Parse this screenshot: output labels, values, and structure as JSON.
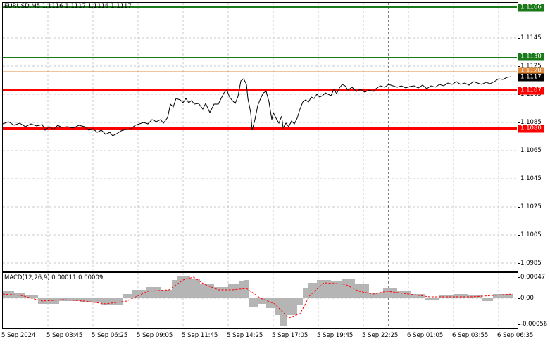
{
  "header": {
    "symbol_line": "EURUSD,M5  1.1116 1.1117 1.1116 1.1117"
  },
  "price_axis": {
    "labels": [
      "1.1145",
      "1.1125",
      "1.1105",
      "1.1085",
      "1.1065",
      "1.1045",
      "1.1025",
      "1.1005",
      "1.0985"
    ]
  },
  "levels": [
    {
      "name": "top-green",
      "price": "1.1166",
      "color": "#1a7a1a",
      "tag_bg": "#1a7a1a",
      "tag_fg": "#ffffff"
    },
    {
      "name": "green",
      "price": "1.1130",
      "color": "#1a7a1a",
      "tag_bg": "#1a7a1a",
      "tag_fg": "#ffffff"
    },
    {
      "name": "orange",
      "price": "1.1120",
      "color": "#e08a3c",
      "tag_bg": "#e08a3c",
      "tag_fg": "#ffffff"
    },
    {
      "name": "current",
      "price": "1.1117",
      "color": "#000000",
      "tag_bg": "#000000",
      "tag_fg": "#ffffff"
    },
    {
      "name": "red-upper",
      "price": "1.1107",
      "color": "#ff0000",
      "tag_bg": "#ff0000",
      "tag_fg": "#ffffff"
    },
    {
      "name": "red-lower",
      "price": "1.1080",
      "color": "#ff0000",
      "tag_bg": "#ff0000",
      "tag_fg": "#ffffff"
    }
  ],
  "macd": {
    "title": "MACD(12,26,9) 0.00011 0.00009",
    "labels": [
      "0.00047",
      "0.00",
      "-0.00056"
    ],
    "histogram_color": "#b5b5b5",
    "signal_color": "#ff0000"
  },
  "time_axis": {
    "labels": [
      "5 Sep 2024",
      "5 Sep 03:45",
      "5 Sep 06:25",
      "5 Sep 09:05",
      "5 Sep 11:45",
      "5 Sep 14:25",
      "5 Sep 17:05",
      "5 Sep 19:45",
      "5 Sep 22:25",
      "6 Sep 01:05",
      "6 Sep 03:55",
      "6 Sep 06:35"
    ]
  }
}
